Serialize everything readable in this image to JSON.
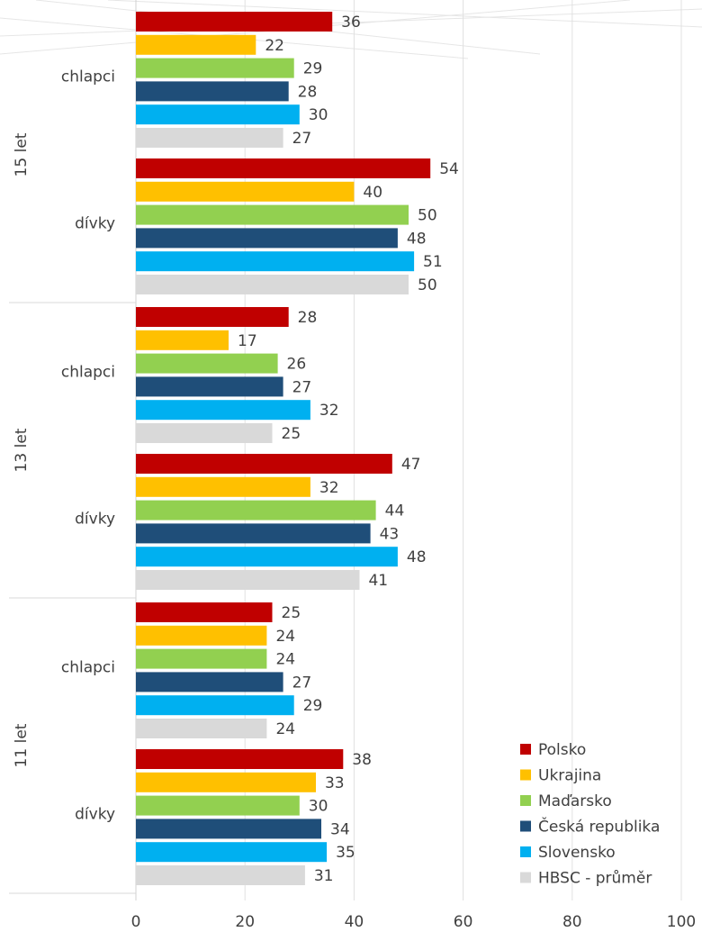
{
  "chart_data": {
    "type": "bar",
    "orientation": "horizontal",
    "grouped": true,
    "xlim": [
      0,
      100
    ],
    "x_ticks": [
      0,
      20,
      40,
      60,
      80,
      100
    ],
    "grid": true,
    "legend_position": "bottom-right",
    "groups": [
      {
        "label": "15 let",
        "categories": [
          {
            "label": "chlapci",
            "values": [
              36,
              22,
              29,
              28,
              30,
              27
            ]
          },
          {
            "label": "dívky",
            "values": [
              54,
              40,
              50,
              48,
              51,
              50
            ]
          }
        ]
      },
      {
        "label": "13 let",
        "categories": [
          {
            "label": "chlapci",
            "values": [
              28,
              17,
              26,
              27,
              32,
              25
            ]
          },
          {
            "label": "dívky",
            "values": [
              47,
              32,
              44,
              43,
              48,
              41
            ]
          }
        ]
      },
      {
        "label": "11 let",
        "categories": [
          {
            "label": "chlapci",
            "values": [
              25,
              24,
              24,
              27,
              29,
              24
            ]
          },
          {
            "label": "dívky",
            "values": [
              38,
              33,
              30,
              34,
              35,
              31
            ]
          }
        ]
      }
    ],
    "series": [
      {
        "name": "Polsko",
        "color": "#C00000"
      },
      {
        "name": "Ukrajina",
        "color": "#FFC000"
      },
      {
        "name": "Maďarsko",
        "color": "#92D050"
      },
      {
        "name": "Česká republika",
        "color": "#1F4E79"
      },
      {
        "name": "Slovensko",
        "color": "#00B0F0"
      },
      {
        "name": "HBSC - průměr",
        "color": "#D9D9D9"
      }
    ]
  }
}
